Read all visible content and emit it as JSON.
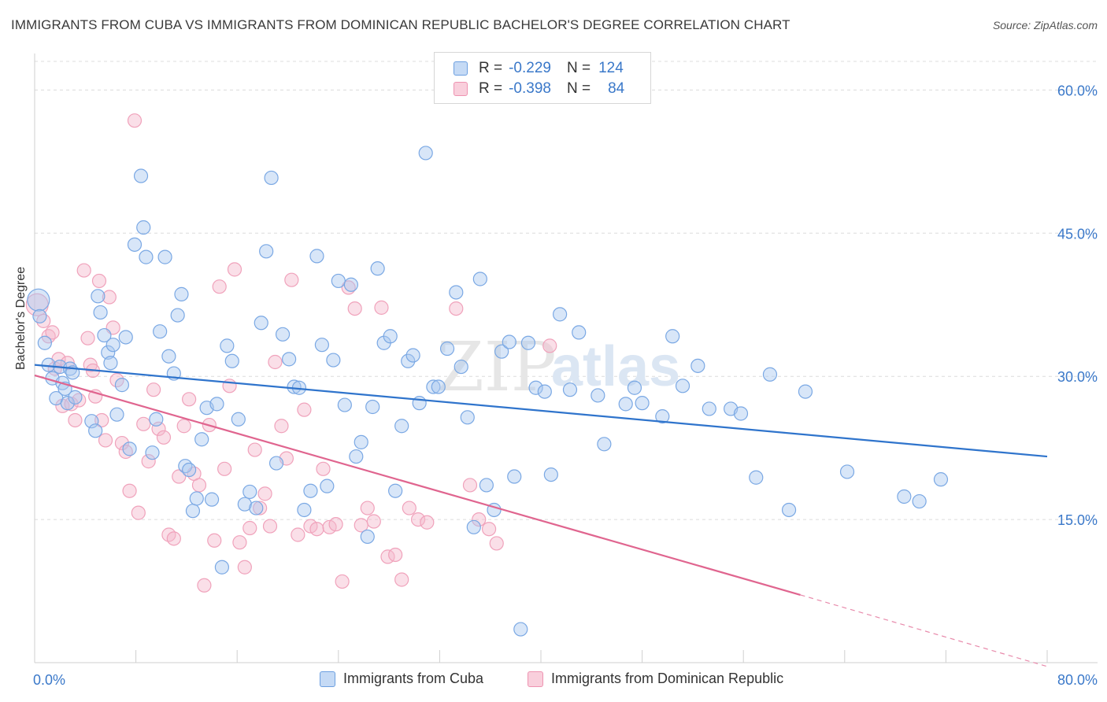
{
  "title": "IMMIGRANTS FROM CUBA VS IMMIGRANTS FROM DOMINICAN REPUBLIC BACHELOR'S DEGREE CORRELATION CHART",
  "source": "Source: ZipAtlas.com",
  "watermark": {
    "zip": "ZIP",
    "atlas": "atlas"
  },
  "legend": {
    "rows": [
      {
        "r_label": "R =",
        "r_value": "-0.229",
        "n_label": "N =",
        "n_value": "124",
        "color": "#a8c8f0"
      },
      {
        "r_label": "R =",
        "r_value": "-0.398",
        "n_label": "N =",
        "n_value": "84",
        "color": "#f5b8cb"
      }
    ]
  },
  "chart_data": {
    "type": "scatter",
    "title": "IMMIGRANTS FROM CUBA VS IMMIGRANTS FROM DOMINICAN REPUBLIC BACHELOR'S DEGREE CORRELATION CHART",
    "xlabel": "",
    "ylabel": "Bachelor's Degree",
    "xlim": [
      0,
      80
    ],
    "ylim": [
      0,
      63
    ],
    "x_tick_labels": [
      "0.0%",
      "80.0%"
    ],
    "y_ticks": [
      15,
      30,
      45,
      60
    ],
    "y_tick_labels": [
      "15.0%",
      "30.0%",
      "45.0%",
      "60.0%"
    ],
    "grid": "horizontal dashed",
    "legend_position": "top-center",
    "series": [
      {
        "name": "Immigrants from Cuba",
        "color": "#5b93d6",
        "fill": "#a8c8f0",
        "trend": {
          "x": [
            0,
            80
          ],
          "y": [
            31.2,
            21.6
          ]
        },
        "points": [
          [
            0.3,
            38
          ],
          [
            0.4,
            36.3
          ],
          [
            0.8,
            33.5
          ],
          [
            1.1,
            31.2
          ],
          [
            1.4,
            29.8
          ],
          [
            1.7,
            27.7
          ],
          [
            2.0,
            31
          ],
          [
            2.2,
            29.3
          ],
          [
            2.4,
            28.7
          ],
          [
            2.6,
            27.2
          ],
          [
            2.8,
            30.8
          ],
          [
            3.0,
            30.4
          ],
          [
            3.2,
            27.8
          ],
          [
            4.5,
            25.3
          ],
          [
            4.8,
            24.3
          ],
          [
            5.0,
            38.4
          ],
          [
            5.2,
            36.7
          ],
          [
            5.5,
            34.3
          ],
          [
            5.8,
            32.5
          ],
          [
            6.0,
            31.4
          ],
          [
            6.2,
            33.3
          ],
          [
            6.5,
            26
          ],
          [
            6.9,
            29.1
          ],
          [
            7.2,
            34.1
          ],
          [
            7.5,
            22.4
          ],
          [
            7.9,
            43.8
          ],
          [
            8.4,
            51
          ],
          [
            8.6,
            45.6
          ],
          [
            8.8,
            42.5
          ],
          [
            9.3,
            22
          ],
          [
            9.6,
            25.5
          ],
          [
            9.9,
            34.7
          ],
          [
            10.3,
            42.5
          ],
          [
            10.6,
            32.1
          ],
          [
            11.0,
            30.3
          ],
          [
            11.3,
            36.4
          ],
          [
            11.6,
            38.6
          ],
          [
            11.9,
            20.6
          ],
          [
            12.2,
            20.2
          ],
          [
            12.5,
            15.9
          ],
          [
            12.8,
            17.2
          ],
          [
            13.2,
            23.4
          ],
          [
            13.6,
            26.7
          ],
          [
            14.0,
            17.1
          ],
          [
            14.4,
            27.1
          ],
          [
            14.8,
            10
          ],
          [
            15.2,
            33.2
          ],
          [
            15.6,
            31.6
          ],
          [
            16.1,
            25.5
          ],
          [
            16.6,
            16.6
          ],
          [
            17.0,
            17.9
          ],
          [
            17.5,
            16.2
          ],
          [
            17.9,
            35.6
          ],
          [
            18.3,
            43.1
          ],
          [
            18.7,
            50.8
          ],
          [
            19.1,
            20.9
          ],
          [
            19.6,
            34.4
          ],
          [
            20.1,
            31.8
          ],
          [
            20.5,
            28.9
          ],
          [
            20.9,
            28.8
          ],
          [
            21.3,
            16
          ],
          [
            21.8,
            18
          ],
          [
            22.3,
            42.6
          ],
          [
            22.7,
            33.3
          ],
          [
            23.1,
            18.5
          ],
          [
            23.6,
            31.7
          ],
          [
            24.0,
            40
          ],
          [
            24.5,
            27
          ],
          [
            25.0,
            39.6
          ],
          [
            25.4,
            21.6
          ],
          [
            25.8,
            23.1
          ],
          [
            26.3,
            13.2
          ],
          [
            26.7,
            26.8
          ],
          [
            27.1,
            41.3
          ],
          [
            27.6,
            33.5
          ],
          [
            28.1,
            34.2
          ],
          [
            28.5,
            18
          ],
          [
            29.0,
            24.8
          ],
          [
            29.5,
            31.6
          ],
          [
            29.9,
            32.2
          ],
          [
            30.4,
            27.2
          ],
          [
            30.9,
            53.4
          ],
          [
            31.5,
            28.9
          ],
          [
            31.9,
            28.9
          ],
          [
            32.6,
            32.9
          ],
          [
            33.3,
            38.8
          ],
          [
            33.7,
            31
          ],
          [
            34.2,
            25.7
          ],
          [
            34.7,
            14.2
          ],
          [
            35.2,
            40.2
          ],
          [
            35.7,
            18.6
          ],
          [
            36.3,
            16
          ],
          [
            36.9,
            32.6
          ],
          [
            37.5,
            33.6
          ],
          [
            37.9,
            19.5
          ],
          [
            38.4,
            3.5
          ],
          [
            39.0,
            33.5
          ],
          [
            39.6,
            28.8
          ],
          [
            40.3,
            28.4
          ],
          [
            40.8,
            19.7
          ],
          [
            41.5,
            36.5
          ],
          [
            42.3,
            28.6
          ],
          [
            43.0,
            34.6
          ],
          [
            44.5,
            28
          ],
          [
            45.0,
            22.9
          ],
          [
            46.7,
            27.1
          ],
          [
            47.4,
            28.8
          ],
          [
            48.0,
            27.2
          ],
          [
            49.6,
            25.8
          ],
          [
            50.4,
            34.2
          ],
          [
            51.2,
            29
          ],
          [
            52.4,
            31.1
          ],
          [
            53.3,
            26.6
          ],
          [
            55.0,
            26.6
          ],
          [
            55.8,
            26.1
          ],
          [
            57.0,
            19.4
          ],
          [
            58.1,
            30.2
          ],
          [
            59.6,
            16
          ],
          [
            60.9,
            28.4
          ],
          [
            64.2,
            20
          ],
          [
            68.7,
            17.4
          ],
          [
            69.9,
            16.9
          ],
          [
            71.6,
            19.2
          ]
        ]
      },
      {
        "name": "Immigrants from Dominican Republic",
        "color": "#e8729a",
        "fill": "#f5b8cb",
        "trend": {
          "x": [
            0,
            60.5
          ],
          "y": [
            30.1,
            7.1
          ]
        },
        "trend_dashed": {
          "x": [
            60.5,
            80
          ],
          "y": [
            7.1,
            -0.4
          ]
        },
        "points": [
          [
            0.2,
            37.5
          ],
          [
            0.7,
            35.8
          ],
          [
            1.1,
            34.2
          ],
          [
            1.4,
            34.6
          ],
          [
            1.6,
            30.8
          ],
          [
            1.9,
            31.8
          ],
          [
            2.2,
            26.9
          ],
          [
            2.6,
            31.4
          ],
          [
            2.9,
            27.1
          ],
          [
            3.2,
            25.4
          ],
          [
            3.5,
            27.5
          ],
          [
            3.9,
            41.1
          ],
          [
            4.2,
            34
          ],
          [
            4.4,
            31.2
          ],
          [
            4.6,
            30.6
          ],
          [
            4.8,
            27.9
          ],
          [
            5.1,
            40
          ],
          [
            5.3,
            25.4
          ],
          [
            5.6,
            23.3
          ],
          [
            5.9,
            38.3
          ],
          [
            6.2,
            35.1
          ],
          [
            6.5,
            29.6
          ],
          [
            6.9,
            23
          ],
          [
            7.2,
            22.1
          ],
          [
            7.5,
            18
          ],
          [
            7.9,
            56.8
          ],
          [
            8.2,
            15.7
          ],
          [
            8.6,
            25
          ],
          [
            9.0,
            21.1
          ],
          [
            9.4,
            28.6
          ],
          [
            9.8,
            24.5
          ],
          [
            10.2,
            23.6
          ],
          [
            10.6,
            13.4
          ],
          [
            11.0,
            13
          ],
          [
            11.4,
            19.5
          ],
          [
            11.8,
            24.8
          ],
          [
            12.2,
            27.6
          ],
          [
            12.6,
            19.8
          ],
          [
            13.0,
            18.6
          ],
          [
            13.4,
            8.1
          ],
          [
            13.8,
            24.9
          ],
          [
            14.2,
            12.8
          ],
          [
            14.6,
            39.4
          ],
          [
            15.0,
            20.3
          ],
          [
            15.4,
            29
          ],
          [
            15.8,
            41.2
          ],
          [
            16.2,
            12.6
          ],
          [
            16.6,
            10
          ],
          [
            17.0,
            14.1
          ],
          [
            17.4,
            22.3
          ],
          [
            17.8,
            16.2
          ],
          [
            18.2,
            17.7
          ],
          [
            18.6,
            14.3
          ],
          [
            19.0,
            31.5
          ],
          [
            19.5,
            24.8
          ],
          [
            19.9,
            21.4
          ],
          [
            20.3,
            40.1
          ],
          [
            20.8,
            13.4
          ],
          [
            21.3,
            26.5
          ],
          [
            21.8,
            14.3
          ],
          [
            22.3,
            14
          ],
          [
            22.8,
            20.3
          ],
          [
            23.3,
            14.2
          ],
          [
            23.8,
            14.5
          ],
          [
            24.3,
            8.5
          ],
          [
            24.8,
            39.3
          ],
          [
            25.3,
            37.1
          ],
          [
            25.8,
            14.4
          ],
          [
            26.3,
            16.2
          ],
          [
            26.8,
            14.8
          ],
          [
            27.4,
            37.2
          ],
          [
            27.9,
            11.1
          ],
          [
            28.5,
            11.3
          ],
          [
            29.0,
            8.7
          ],
          [
            29.6,
            16.2
          ],
          [
            30.3,
            15
          ],
          [
            31.0,
            14.7
          ],
          [
            33.3,
            37.1
          ],
          [
            34.4,
            18.6
          ],
          [
            35.1,
            15
          ],
          [
            35.9,
            14
          ],
          [
            36.5,
            12.5
          ],
          [
            40.7,
            33.2
          ]
        ]
      }
    ]
  },
  "bottom_legend": [
    "Immigrants from Cuba",
    "Immigrants from Dominican Republic"
  ]
}
